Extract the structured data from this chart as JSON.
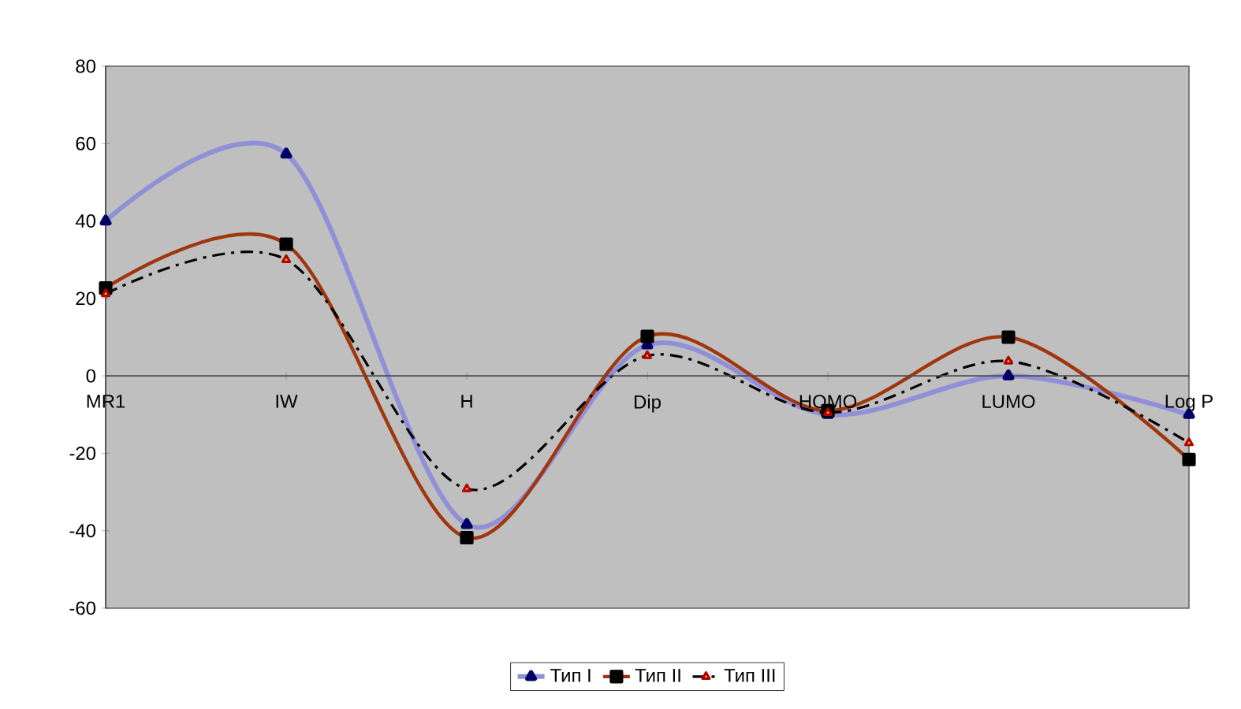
{
  "chart_data": {
    "type": "line",
    "categories": [
      "MR1",
      "IW",
      "H",
      "Dip",
      "HOMO",
      "LUMO",
      "Log P"
    ],
    "ylim": [
      -60,
      80
    ],
    "yticks": [
      -60,
      -40,
      -20,
      0,
      20,
      40,
      60,
      80
    ],
    "grid": false,
    "legend": "bottom",
    "series": [
      {
        "name": "Тип I",
        "color": "#9090d8",
        "marker": "triangle",
        "line_style": "solid",
        "values": [
          40,
          57.3,
          -38.4,
          8,
          -10,
          0,
          -10
        ]
      },
      {
        "name": "Тип II",
        "color": "#a0360e",
        "marker": "square",
        "line_style": "solid",
        "values": [
          22.7,
          34,
          -41.8,
          10.2,
          -9,
          10,
          -21.6
        ]
      },
      {
        "name": "Тип III",
        "color": "#000000",
        "marker": "triangle",
        "line_style": "dashdotted",
        "values": [
          21.2,
          30,
          -29.2,
          5.2,
          -9.5,
          3.8,
          -17.3
        ]
      }
    ]
  }
}
